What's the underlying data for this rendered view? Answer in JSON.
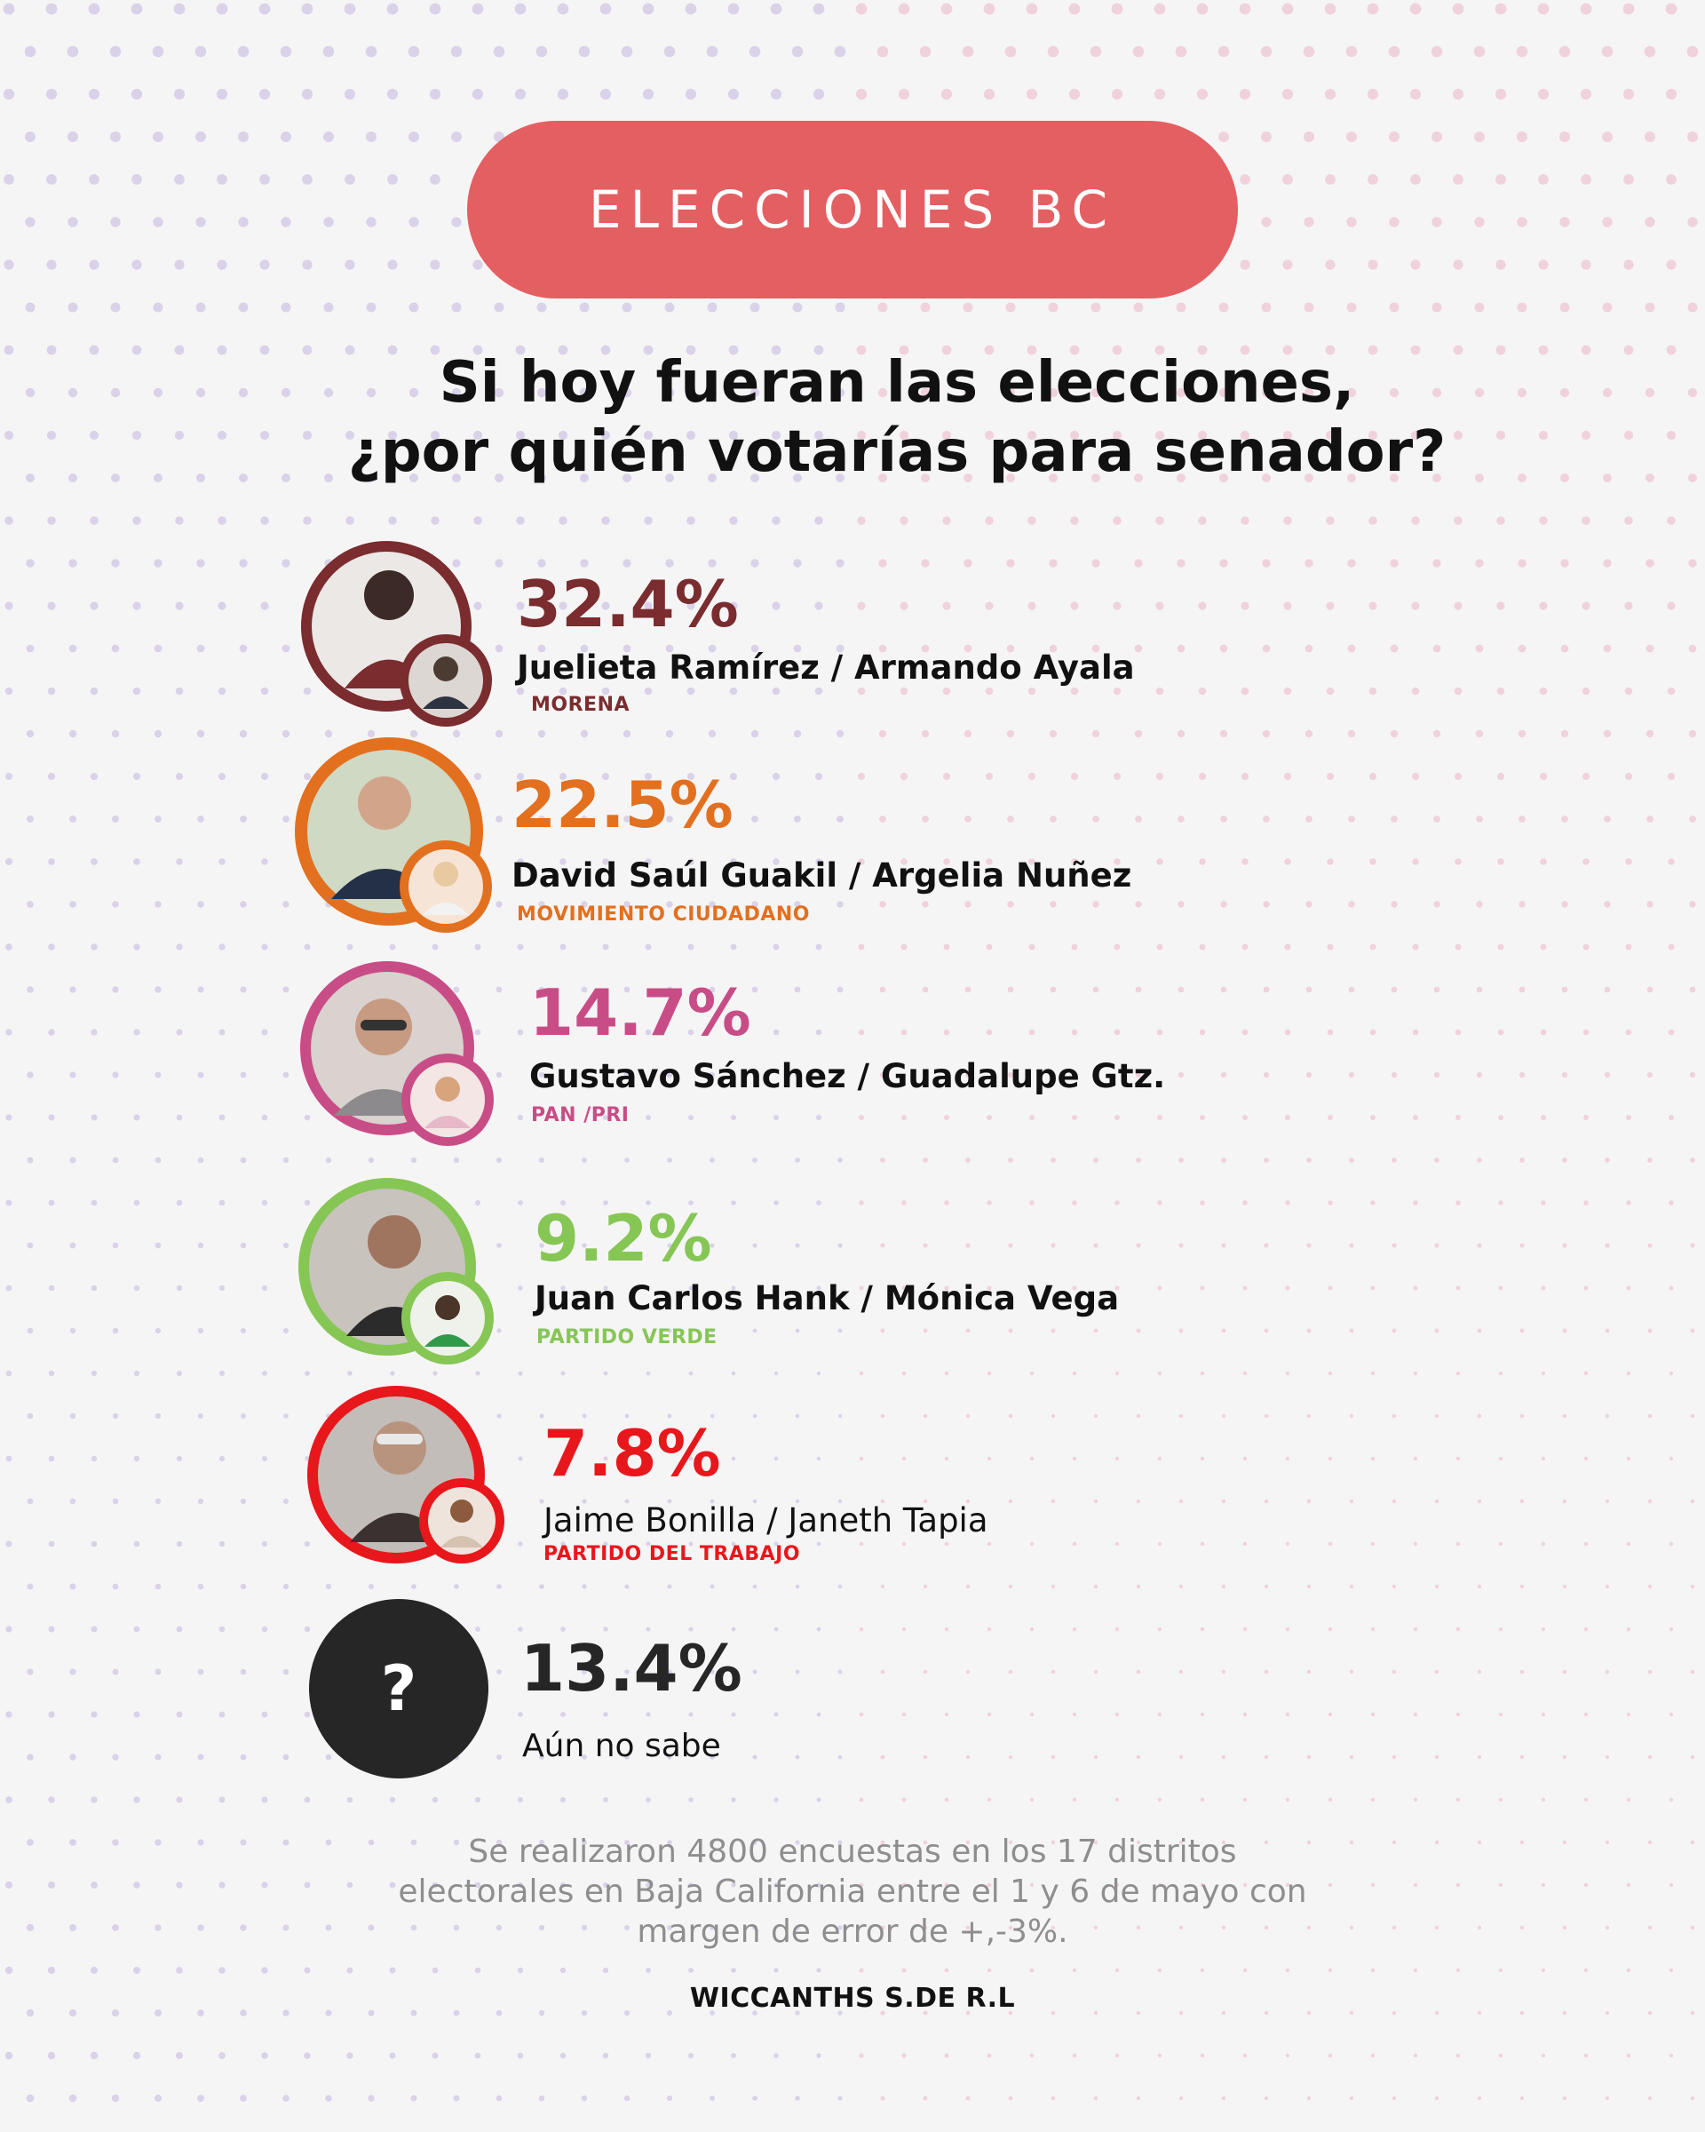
{
  "header": {
    "label": "ELECCIONES BC"
  },
  "question": {
    "line1": "Si hoy fueran las elecciones,",
    "line2": "¿por quién votarías para senador?"
  },
  "chart_data": {
    "type": "table",
    "categories": [
      "Juelieta Ramírez / Armando Ayala",
      "David Saúl Guakil / Argelia Nuñez",
      "Gustavo Sánchez  / Guadalupe Gtz.",
      "Juan Carlos Hank / Mónica Vega",
      "Jaime Bonilla / Janeth Tapia",
      "Aún no sabe"
    ],
    "values": [
      32.4,
      22.5,
      14.7,
      9.2,
      7.8,
      13.4
    ],
    "rows": [
      {
        "percent": "32.4%",
        "names": "Juelieta Ramírez / Armando Ayala",
        "party": "MORENA",
        "color": "#7a2c2e"
      },
      {
        "percent": "22.5%",
        "names": "David Saúl Guakil / Argelia Nuñez",
        "party": "MOVIMIENTO CIUDADANO",
        "color": "#e2701f"
      },
      {
        "percent": "14.7%",
        "names": "Gustavo Sánchez  / Guadalupe Gtz.",
        "party": "PAN /PRI",
        "color": "#c84d86"
      },
      {
        "percent": "9.2%",
        "names": "Juan Carlos Hank / Mónica Vega",
        "party": "PARTIDO VERDE",
        "color": "#86c655"
      },
      {
        "percent": "7.8%",
        "names": "Jaime Bonilla / Janeth Tapia",
        "party": "PARTIDO DEL TRABAJO",
        "color": "#e8171c"
      },
      {
        "percent": "13.4%",
        "names": "Aún no sabe",
        "party": "",
        "color": "#262626"
      }
    ],
    "unknown_symbol": "?"
  },
  "footnote": {
    "line1": "Se realizaron  4800 encuestas en los 17 distritos",
    "line2": "electorales en Baja California entre el 1 y 6 de mayo  con",
    "line3": "margen de error de +,-3%."
  },
  "credit": "WICCANTHS S.DE R.L"
}
